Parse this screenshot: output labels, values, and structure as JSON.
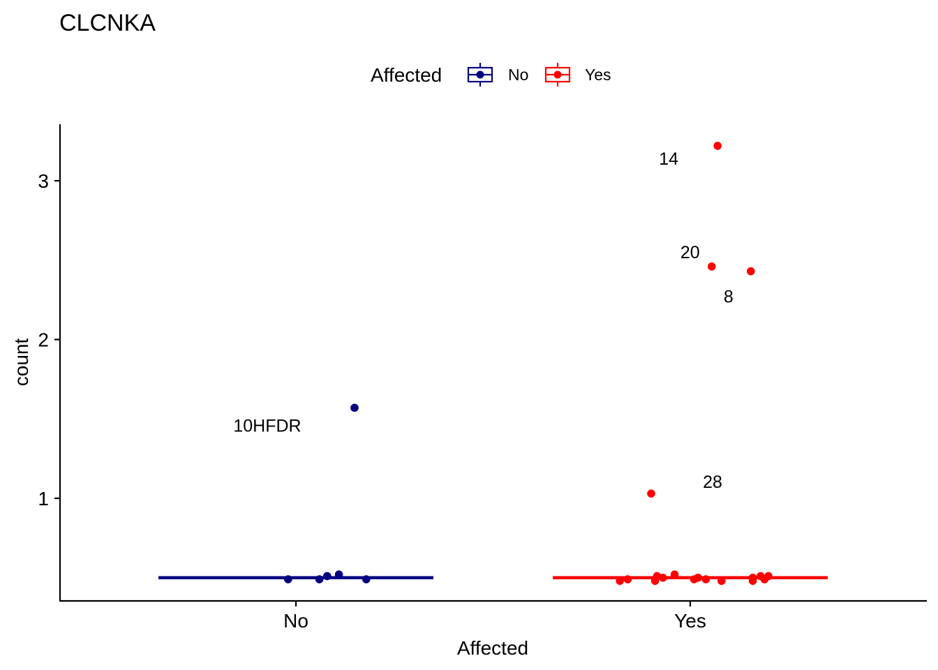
{
  "chart_data": {
    "type": "scatter",
    "title": "CLCNKA",
    "xlabel": "Affected",
    "ylabel": "count",
    "categories": [
      "No",
      "Yes"
    ],
    "yticks": [
      1,
      2,
      3
    ],
    "ylim": [
      0.38,
      3.35
    ],
    "grid": false,
    "legend": {
      "title": "Affected",
      "position": "top",
      "entries": [
        {
          "label": "No",
          "color": "#000080"
        },
        {
          "label": "Yes",
          "color": "#ff0000"
        }
      ]
    },
    "medians": [
      {
        "category": "No",
        "value": 0.5
      },
      {
        "category": "Yes",
        "value": 0.5
      }
    ],
    "series": [
      {
        "category": "No",
        "color": "#000080",
        "points": [
          {
            "jitter": -0.02,
            "y": 0.49
          },
          {
            "jitter": 0.06,
            "y": 0.49
          },
          {
            "jitter": 0.08,
            "y": 0.51
          },
          {
            "jitter": 0.11,
            "y": 0.52
          },
          {
            "jitter": 0.18,
            "y": 0.49
          },
          {
            "jitter": 0.15,
            "y": 1.57,
            "label": "10HFDR"
          }
        ]
      },
      {
        "category": "Yes",
        "color": "#ff0000",
        "points": [
          {
            "jitter": -0.18,
            "y": 0.48
          },
          {
            "jitter": -0.16,
            "y": 0.49
          },
          {
            "jitter": -0.09,
            "y": 0.48
          },
          {
            "jitter": -0.085,
            "y": 0.51
          },
          {
            "jitter": -0.07,
            "y": 0.5
          },
          {
            "jitter": -0.04,
            "y": 0.52
          },
          {
            "jitter": 0.01,
            "y": 0.49
          },
          {
            "jitter": 0.02,
            "y": 0.5
          },
          {
            "jitter": 0.04,
            "y": 0.49
          },
          {
            "jitter": 0.08,
            "y": 0.48
          },
          {
            "jitter": 0.16,
            "y": 0.48
          },
          {
            "jitter": 0.16,
            "y": 0.5
          },
          {
            "jitter": 0.18,
            "y": 0.51
          },
          {
            "jitter": 0.19,
            "y": 0.49
          },
          {
            "jitter": 0.2,
            "y": 0.51
          },
          {
            "jitter": -0.1,
            "y": 1.03,
            "label": "28"
          },
          {
            "jitter": 0.055,
            "y": 2.46,
            "label": "20"
          },
          {
            "jitter": 0.155,
            "y": 2.43,
            "label": "8"
          },
          {
            "jitter": 0.07,
            "y": 3.22,
            "label": "14"
          }
        ]
      }
    ]
  }
}
